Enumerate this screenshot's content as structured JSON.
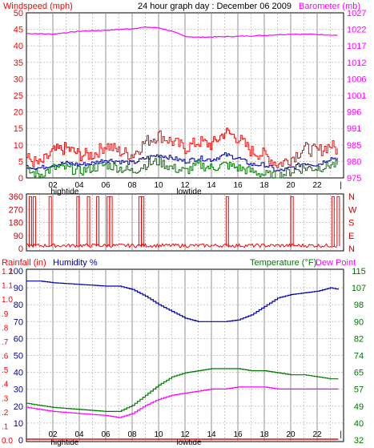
{
  "colors": {
    "red": "#ff0000",
    "magenta": "#ff00ff",
    "blue": "#0000aa",
    "green": "#007700",
    "darkred": "#cc0000",
    "gridline": "#c8c8c8",
    "border": "#000000",
    "background": "#ffffff"
  },
  "chart_data": [
    {
      "type": "line",
      "panel": "wind-barometer",
      "title": "24 hour graph day : December 06 2009",
      "left_axis_label": "Windspeed (mph)",
      "right_axis_label": "Barometer (mb)",
      "left_ylim": [
        0,
        50
      ],
      "left_ticks": [
        "0",
        "5",
        "10",
        "15",
        "20",
        "25",
        "30",
        "35",
        "40",
        "45",
        "50"
      ],
      "right_ylim": [
        975,
        1027
      ],
      "right_ticks": [
        "975",
        "980",
        "985",
        "991",
        "996",
        "1001",
        "1006",
        "1012",
        "1017",
        "1022",
        "1027"
      ],
      "x_ticks": [
        "02",
        "04",
        "06",
        "08",
        "10",
        "12",
        "14",
        "16",
        "18",
        "20",
        "22"
      ],
      "tide_labels": [
        {
          "text": "hightide",
          "hour": 2.9
        },
        {
          "text": "lowtide",
          "hour": 12.3
        }
      ],
      "grid": true,
      "series": [
        {
          "key": "barometer",
          "axis": "right",
          "x": [
            0,
            2,
            4,
            6,
            8,
            9,
            10,
            11,
            12,
            13,
            14,
            16,
            18,
            20,
            22,
            23.6
          ],
          "y": [
            1020.5,
            1020.3,
            1021.2,
            1021.5,
            1022,
            1022.5,
            1022.3,
            1021.2,
            1019.6,
            1019.3,
            1019.4,
            1019.6,
            1019.9,
            1020.3,
            1020.2,
            1019.9
          ]
        },
        {
          "key": "wind_gust",
          "axis": "left",
          "x": [
            0,
            1,
            2,
            3,
            4,
            5,
            6,
            7,
            8,
            9,
            10,
            11,
            12,
            13,
            14,
            15,
            16,
            17,
            18,
            19,
            20,
            21,
            22,
            23,
            23.6
          ],
          "y": [
            6,
            4,
            8,
            9,
            7,
            7,
            10,
            8,
            7,
            11,
            13,
            11,
            9,
            11,
            10,
            14,
            12,
            8,
            7,
            4,
            6,
            9,
            8,
            10,
            8
          ]
        },
        {
          "key": "wind_avg",
          "axis": "left",
          "x": [
            0,
            1,
            2,
            3,
            4,
            5,
            6,
            7,
            8,
            9,
            10,
            11,
            12,
            13,
            14,
            15,
            16,
            17,
            18,
            19,
            20,
            21,
            22,
            23,
            23.6
          ],
          "y": [
            3.5,
            3,
            4,
            4.5,
            4,
            4.5,
            5.5,
            5,
            4.5,
            6,
            7,
            6,
            5,
            6,
            5.5,
            7,
            6,
            4,
            4,
            2,
            3,
            4.5,
            4,
            6,
            6
          ]
        },
        {
          "key": "wind_min",
          "axis": "left",
          "x": [
            0,
            1,
            2,
            3,
            4,
            5,
            6,
            7,
            8,
            9,
            10,
            11,
            12,
            13,
            14,
            15,
            16,
            17,
            18,
            19,
            20,
            21,
            22,
            23,
            23.6
          ],
          "y": [
            2,
            1,
            3,
            3,
            2,
            3,
            4,
            3,
            2,
            4,
            5,
            3,
            2,
            4,
            3,
            4,
            3,
            2,
            1,
            0.5,
            2,
            3,
            3,
            4,
            4
          ]
        }
      ]
    },
    {
      "type": "line",
      "panel": "wind-direction",
      "right_labels": [
        "N",
        "W",
        "S",
        "E",
        "N"
      ],
      "left_ticks": [
        "0",
        "90",
        "180",
        "270",
        "360"
      ],
      "ylim": [
        0,
        360
      ],
      "spike_hours": [
        0.3,
        0.6,
        1.8,
        3.9,
        4.7,
        5.4,
        6.2,
        6.4,
        8.6,
        8.8,
        15.2,
        20.1,
        23.2,
        23.6
      ],
      "baseline_deg": 20
    },
    {
      "type": "line",
      "panel": "humidity-temperature",
      "left_label_rain": "Rainfall (in)",
      "left_label_humidity": "Humidity %",
      "right_label_temp": "Temperature (°F)",
      "right_label_dew": "Dew Point",
      "rain_ticks": [
        "0.0",
        ".1",
        ".2",
        ".3",
        ".4",
        ".5",
        ".6",
        ".7",
        ".8",
        ".9",
        "1.0",
        "1.1",
        "1.2"
      ],
      "humidity_ticks": [
        "0",
        "10",
        "20",
        "30",
        "40",
        "50",
        "60",
        "70",
        "80",
        "90",
        "100"
      ],
      "temp_ticks": [
        "32",
        "40",
        "49",
        "57",
        "65",
        "74",
        "82",
        "90",
        "98",
        "107",
        "115"
      ],
      "temp_ylim": [
        32,
        115
      ],
      "x_ticks": [
        "02",
        "04",
        "06",
        "08",
        "10",
        "12",
        "14",
        "16",
        "18",
        "20",
        "22"
      ],
      "tide_labels": [
        {
          "text": "hightide",
          "hour": 2.9
        },
        {
          "text": "lowtide",
          "hour": 12.3
        }
      ],
      "series": [
        {
          "key": "humidity",
          "axis": "left",
          "x": [
            0,
            1,
            2,
            4,
            6,
            7,
            8,
            9,
            10,
            11,
            12,
            13,
            14,
            15,
            16,
            17,
            18,
            19,
            20,
            21,
            22,
            23,
            23.6
          ],
          "y": [
            94,
            94,
            93,
            92,
            91,
            91,
            89,
            85,
            80,
            76,
            72,
            70,
            70,
            70,
            71,
            74,
            79,
            84,
            86,
            87,
            88,
            90,
            89
          ]
        },
        {
          "key": "temperature",
          "axis": "right",
          "x": [
            0,
            1,
            2,
            4,
            6,
            7,
            8,
            9,
            10,
            11,
            12,
            13,
            14,
            15,
            16,
            17,
            18,
            19,
            20,
            21,
            22,
            23,
            23.6
          ],
          "y": [
            50,
            49,
            48,
            47,
            46,
            46,
            49,
            54,
            59,
            63,
            65,
            66,
            67,
            67,
            67,
            66,
            66,
            65,
            64,
            64,
            63,
            62,
            62
          ]
        },
        {
          "key": "dewpoint",
          "axis": "right",
          "x": [
            0,
            1,
            2,
            4,
            6,
            7,
            8,
            9,
            10,
            11,
            12,
            13,
            14,
            15,
            16,
            17,
            18,
            19,
            20,
            21,
            22,
            23,
            23.6
          ],
          "y": [
            48,
            47,
            46,
            45,
            44,
            43,
            45,
            49,
            52,
            54,
            55,
            56,
            57,
            57,
            58,
            58,
            58,
            57,
            57,
            57,
            57,
            57,
            57
          ]
        },
        {
          "key": "rainfall",
          "axis": "left",
          "x": [
            0,
            23.6
          ],
          "y": [
            0,
            0
          ]
        }
      ]
    }
  ]
}
